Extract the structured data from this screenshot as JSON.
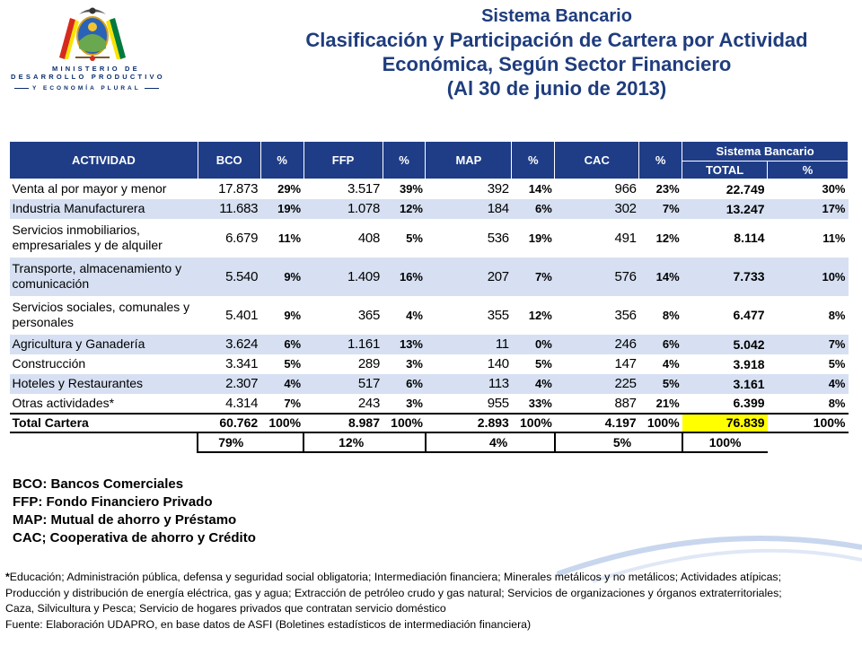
{
  "logo": {
    "line1": "MINISTERIO DE",
    "line2": "DESARROLLO PRODUCTIVO",
    "line3": "Y ECONOMÍA PLURAL"
  },
  "title": {
    "line1": "Sistema Bancario",
    "line2": "Clasificación y Participación de Cartera por Actividad",
    "line3": "Económica, Según Sector Financiero",
    "line4": "(Al 30 de junio de 2013)"
  },
  "table": {
    "headers": {
      "actividad": "ACTIVIDAD",
      "bco": "BCO",
      "pct1": "%",
      "ffp": "FFP",
      "pct2": "%",
      "map": "MAP",
      "pct3": "%",
      "cac": "CAC",
      "pct4": "%",
      "sistema": "Sistema Bancario",
      "total": "TOTAL",
      "pct5": "%"
    },
    "rows": [
      {
        "actividad": "Venta al por mayor y menor",
        "bco": "17.873",
        "bco_pct": "29%",
        "ffp": "3.517",
        "ffp_pct": "39%",
        "map": "392",
        "map_pct": "14%",
        "cac": "966",
        "cac_pct": "23%",
        "total": "22.749",
        "total_pct": "30%"
      },
      {
        "actividad": "Industria Manufacturera",
        "bco": "11.683",
        "bco_pct": "19%",
        "ffp": "1.078",
        "ffp_pct": "12%",
        "map": "184",
        "map_pct": "6%",
        "cac": "302",
        "cac_pct": "7%",
        "total": "13.247",
        "total_pct": "17%"
      },
      {
        "actividad": "Servicios inmobiliarios, empresariales y de alquiler",
        "bco": "6.679",
        "bco_pct": "11%",
        "ffp": "408",
        "ffp_pct": "5%",
        "map": "536",
        "map_pct": "19%",
        "cac": "491",
        "cac_pct": "12%",
        "total": "8.114",
        "total_pct": "11%"
      },
      {
        "actividad": "Transporte, almacenamiento y comunicación",
        "bco": "5.540",
        "bco_pct": "9%",
        "ffp": "1.409",
        "ffp_pct": "16%",
        "map": "207",
        "map_pct": "7%",
        "cac": "576",
        "cac_pct": "14%",
        "total": "7.733",
        "total_pct": "10%"
      },
      {
        "actividad": "Servicios sociales, comunales y personales",
        "bco": "5.401",
        "bco_pct": "9%",
        "ffp": "365",
        "ffp_pct": "4%",
        "map": "355",
        "map_pct": "12%",
        "cac": "356",
        "cac_pct": "8%",
        "total": "6.477",
        "total_pct": "8%"
      },
      {
        "actividad": "Agricultura y Ganadería",
        "bco": "3.624",
        "bco_pct": "6%",
        "ffp": "1.161",
        "ffp_pct": "13%",
        "map": "11",
        "map_pct": "0%",
        "cac": "246",
        "cac_pct": "6%",
        "total": "5.042",
        "total_pct": "7%"
      },
      {
        "actividad": "Construcción",
        "bco": "3.341",
        "bco_pct": "5%",
        "ffp": "289",
        "ffp_pct": "3%",
        "map": "140",
        "map_pct": "5%",
        "cac": "147",
        "cac_pct": "4%",
        "total": "3.918",
        "total_pct": "5%"
      },
      {
        "actividad": "Hoteles y Restaurantes",
        "bco": "2.307",
        "bco_pct": "4%",
        "ffp": "517",
        "ffp_pct": "6%",
        "map": "113",
        "map_pct": "4%",
        "cac": "225",
        "cac_pct": "5%",
        "total": "3.161",
        "total_pct": "4%"
      },
      {
        "actividad": "Otras actividades*",
        "bco": "4.314",
        "bco_pct": "7%",
        "ffp": "243",
        "ffp_pct": "3%",
        "map": "955",
        "map_pct": "33%",
        "cac": "887",
        "cac_pct": "21%",
        "total": "6.399",
        "total_pct": "8%"
      }
    ],
    "total_row": {
      "actividad": "Total Cartera",
      "bco": "60.762",
      "bco_pct": "100%",
      "ffp": "8.987",
      "ffp_pct": "100%",
      "map": "2.893",
      "map_pct": "100%",
      "cac": "4.197",
      "cac_pct": "100%",
      "total": "76.839",
      "total_pct": "100%"
    },
    "share_row": {
      "bco": "79%",
      "ffp": "12%",
      "map": "4%",
      "cac": "5%",
      "total": "100%"
    }
  },
  "legend": {
    "bco": "BCO: Bancos Comerciales",
    "ffp": "FFP: Fondo Financiero Privado",
    "map": "MAP: Mutual de ahorro y Préstamo",
    "cac": "CAC; Cooperativa de ahorro y Crédito"
  },
  "footnote": {
    "asterisk": "*",
    "line1": "Educación; Administración pública, defensa y seguridad social obligatoria; Intermediación financiera; Minerales metálicos y no metálicos; Actividades atípicas;",
    "line2": "Producción y distribución de energía eléctrica, gas y agua; Extracción de petróleo crudo y gas natural; Servicios de organizaciones y órganos extraterritoriales;",
    "line3": "Caza, Silvicultura y Pesca; Servicio de hogares privados que contratan servicio doméstico",
    "source": "Fuente: Elaboración UDAPRO, en base datos de ASFI (Boletines estadísticos de intermediación financiera)"
  },
  "colors": {
    "header_bg": "#1f3d87",
    "title": "#1f3c7d",
    "band": "#d6e0f2",
    "highlight": "#ffff00"
  }
}
